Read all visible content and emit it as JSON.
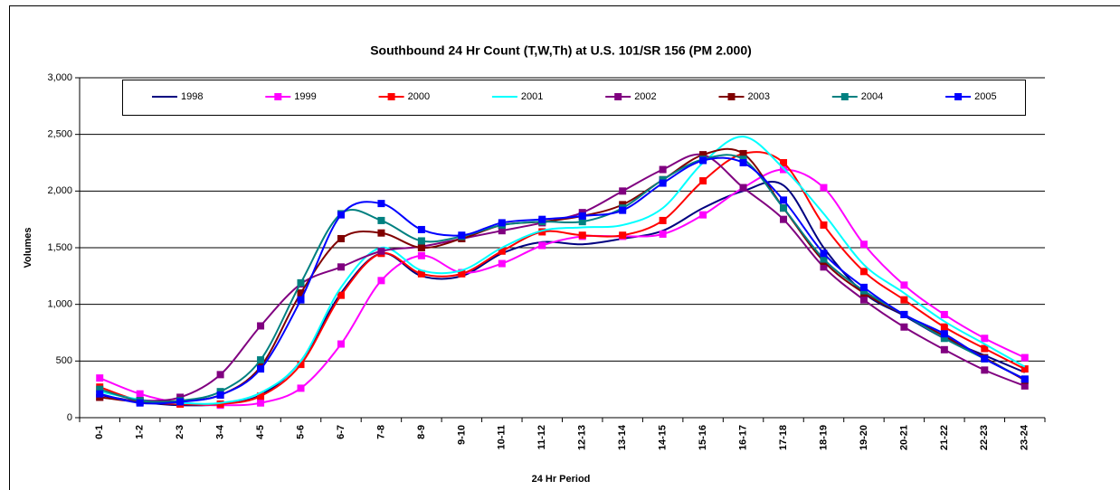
{
  "chart_data": {
    "type": "line",
    "title": "Southbound 24 Hr Count (T,W,Th) at U.S. 101/SR 156 (PM 2.000)",
    "x_label": "24 Hr Period",
    "y_label": "Volumes",
    "categories": [
      "0-1",
      "1-2",
      "2-3",
      "3-4",
      "4-5",
      "5-6",
      "6-7",
      "7-8",
      "8-9",
      "9-10",
      "10-11",
      "11-12",
      "12-13",
      "13-14",
      "14-15",
      "15-16",
      "16-17",
      "17-18",
      "18-19",
      "19-20",
      "20-21",
      "21-22",
      "22-23",
      "23-24"
    ],
    "ylim": [
      0,
      3000
    ],
    "yticks": [
      0,
      500,
      {
        "value": 1000,
        "label": "1,000"
      },
      {
        "value": 1500,
        "label": "1,500"
      },
      {
        "value": 2000,
        "label": "2,000"
      },
      {
        "value": 2500,
        "label": "2,500"
      },
      {
        "value": 3000,
        "label": "3,000"
      }
    ],
    "grid": true,
    "smooth": true,
    "legend": "top",
    "series": [
      {
        "name": "1998",
        "color": "#000080",
        "marker": "none",
        "values": [
          200,
          140,
          110,
          120,
          200,
          500,
          1100,
          1450,
          1250,
          1250,
          1450,
          1550,
          1530,
          1580,
          1650,
          1850,
          2000,
          2050,
          1500,
          1100,
          900,
          700,
          550,
          400
        ]
      },
      {
        "name": "1999",
        "color": "#ff00ff",
        "marker": "square",
        "values": [
          350,
          210,
          130,
          110,
          130,
          260,
          650,
          1210,
          1430,
          1280,
          1360,
          1520,
          1600,
          1600,
          1620,
          1790,
          2030,
          2190,
          2030,
          1530,
          1170,
          910,
          700,
          530
        ]
      },
      {
        "name": "2000",
        "color": "#ff0000",
        "marker": "square",
        "values": [
          270,
          150,
          120,
          120,
          190,
          470,
          1080,
          1450,
          1270,
          1270,
          1470,
          1640,
          1610,
          1610,
          1740,
          2090,
          2330,
          2250,
          1700,
          1290,
          1040,
          800,
          610,
          430
        ]
      },
      {
        "name": "2001",
        "color": "#00ffff",
        "marker": "none",
        "values": [
          230,
          160,
          130,
          130,
          220,
          500,
          1150,
          1500,
          1300,
          1300,
          1500,
          1650,
          1680,
          1700,
          1850,
          2250,
          2480,
          2200,
          1800,
          1350,
          1100,
          850,
          650,
          450
        ]
      },
      {
        "name": "2002",
        "color": "#800080",
        "marker": "square",
        "values": [
          180,
          150,
          180,
          380,
          810,
          1180,
          1330,
          1470,
          1510,
          1580,
          1650,
          1720,
          1810,
          2000,
          2190,
          2320,
          2030,
          1750,
          1330,
          1040,
          800,
          600,
          420,
          280
        ]
      },
      {
        "name": "2003",
        "color": "#800000",
        "marker": "square",
        "values": [
          180,
          140,
          150,
          200,
          450,
          1100,
          1580,
          1630,
          1500,
          1580,
          1700,
          1730,
          1780,
          1880,
          2100,
          2320,
          2330,
          1850,
          1380,
          1100,
          910,
          720,
          530,
          330
        ]
      },
      {
        "name": "2004",
        "color": "#008080",
        "marker": "square",
        "values": [
          250,
          150,
          150,
          230,
          510,
          1190,
          1800,
          1740,
          1560,
          1600,
          1700,
          1730,
          1730,
          1850,
          2100,
          2280,
          2280,
          1850,
          1400,
          1120,
          910,
          700,
          520,
          340
        ]
      },
      {
        "name": "2005",
        "color": "#0000ff",
        "marker": "square",
        "values": [
          210,
          130,
          140,
          200,
          430,
          1040,
          1790,
          1890,
          1660,
          1610,
          1720,
          1750,
          1780,
          1830,
          2070,
          2270,
          2250,
          1920,
          1450,
          1150,
          910,
          740,
          520,
          340
        ]
      }
    ]
  }
}
